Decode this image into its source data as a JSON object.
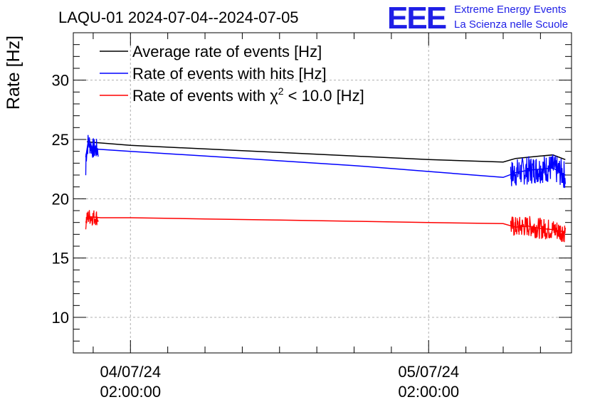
{
  "chart_data": {
    "type": "line",
    "title": "LAQU-01 2024-07-04--2024-07-05",
    "xlabel": "",
    "ylabel": "Rate [Hz]",
    "ylim": [
      7,
      34
    ],
    "xlim_hours": [
      -4.6,
      35.5
    ],
    "yticks": [
      10,
      15,
      20,
      25,
      30
    ],
    "xticks": [
      {
        "hour": 0,
        "line1": "04/07/24",
        "line2": "02:00:00"
      },
      {
        "hour": 24,
        "line1": "05/07/24",
        "line2": "02:00:00"
      }
    ],
    "grid": true,
    "legend_position": "top-left",
    "legend_labels": {
      "avg": "Average rate of events [Hz]",
      "hits": "Rate of events with hits [Hz]",
      "chi_prefix": "Rate of events with χ",
      "chi_sup": "2",
      "chi_suffix": " < 10.0 [Hz]"
    },
    "series": [
      {
        "name": "Average rate of events [Hz]",
        "color": "#000000",
        "x": [
          -3.5,
          0,
          6,
          12,
          18,
          24,
          30,
          31,
          32,
          33,
          34,
          35
        ],
        "values": [
          24.8,
          24.5,
          24.2,
          23.9,
          23.6,
          23.3,
          23.1,
          23.4,
          23.5,
          23.6,
          23.7,
          23.3
        ]
      },
      {
        "name": "Rate of events with hits [Hz]",
        "color": "#0000ff",
        "x": [
          -3.6,
          -3.4,
          -3.0,
          0,
          6,
          12,
          18,
          24,
          30,
          31,
          32,
          33,
          34,
          35
        ],
        "values": [
          23.5,
          24.8,
          24.2,
          24.0,
          23.6,
          23.2,
          22.8,
          22.3,
          21.8,
          22.2,
          22.4,
          22.5,
          22.6,
          22.0
        ]
      },
      {
        "name": "Rate of events with χ2 < 10.0 [Hz]",
        "color": "#ff0000",
        "x": [
          -3.6,
          -3.4,
          -2.4,
          0,
          6,
          12,
          18,
          24,
          30,
          31,
          32,
          33,
          34,
          35
        ],
        "values": [
          18.0,
          18.5,
          18.4,
          18.4,
          18.3,
          18.2,
          18.1,
          18.0,
          17.9,
          17.6,
          17.7,
          17.5,
          17.4,
          17.2
        ]
      }
    ],
    "noise_segments": [
      {
        "series": 1,
        "x_start": -3.6,
        "x_end": -2.6,
        "amplitude": 0.9
      },
      {
        "series": 1,
        "x_start": 30.6,
        "x_end": 35.0,
        "amplitude": 1.2
      },
      {
        "series": 2,
        "x_start": -3.6,
        "x_end": -2.6,
        "amplitude": 0.7
      },
      {
        "series": 2,
        "x_start": 30.6,
        "x_end": 35.0,
        "amplitude": 0.9
      }
    ]
  },
  "branding": {
    "logo": "EEE",
    "line1": "Extreme Energy Events",
    "line2": "La Scienza nelle Scuole"
  }
}
